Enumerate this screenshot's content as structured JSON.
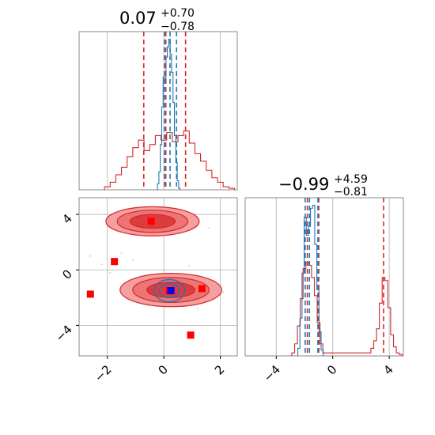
{
  "chart_data": {
    "type": "corner",
    "colors": {
      "blue": "#1f77b4",
      "red": "#d62728",
      "marker_red": "#ff0000",
      "marker_blue": "#0000ff",
      "grid": "#b0b0b0"
    },
    "panels": [
      {
        "id": "hist_x",
        "type": "line",
        "title": {
          "main": "0.07",
          "plus": "+0.70",
          "minus": "−0.78"
        },
        "xlim": [
          -3.0,
          2.6
        ],
        "x_gridlines": [
          -2,
          0,
          2
        ],
        "red_hist": {
          "x": [
            -2.0,
            -1.8,
            -1.6,
            -1.4,
            -1.2,
            -1.0,
            -0.8,
            -0.6,
            -0.4,
            -0.2,
            0.0,
            0.2,
            0.4,
            0.6,
            0.8,
            1.0,
            1.2,
            1.4,
            1.6,
            1.8,
            2.0,
            2.2,
            2.4
          ],
          "values": [
            0.02,
            0.05,
            0.1,
            0.15,
            0.22,
            0.28,
            0.33,
            0.26,
            0.3,
            0.36,
            0.33,
            0.38,
            0.32,
            0.36,
            0.39,
            0.31,
            0.24,
            0.19,
            0.13,
            0.08,
            0.05,
            0.02,
            0.01
          ]
        },
        "blue_hist": {
          "x": [
            -0.2,
            -0.15,
            -0.1,
            -0.05,
            0.0,
            0.05,
            0.1,
            0.15,
            0.2,
            0.25,
            0.3,
            0.35,
            0.4,
            0.45,
            0.5,
            0.55
          ],
          "values": [
            0.04,
            0.12,
            0.3,
            0.55,
            0.75,
            0.72,
            0.88,
            0.95,
            1.0,
            0.9,
            0.78,
            0.58,
            0.36,
            0.18,
            0.06,
            0.01
          ]
        },
        "red_quantiles": [
          -0.71,
          0.07,
          0.77
        ],
        "blue_quantiles": [
          0.02,
          0.22,
          0.45
        ]
      },
      {
        "id": "scatter_xy",
        "type": "scatter",
        "xlim": [
          -3.0,
          2.6
        ],
        "ylim": [
          -6.2,
          5.2
        ],
        "x_ticks": [
          "−2",
          "0",
          "2"
        ],
        "y_ticks": [
          "−4",
          "0",
          "4"
        ],
        "x_tick_values": [
          -2,
          0,
          2
        ],
        "y_tick_values": [
          -4,
          0,
          4
        ],
        "red_markers": [
          [
            -0.45,
            3.5
          ],
          [
            -1.75,
            0.6
          ],
          [
            -2.6,
            -1.75
          ],
          [
            1.35,
            -1.35
          ],
          [
            0.95,
            -4.7
          ],
          [
            0.2,
            -1.5
          ]
        ],
        "blue_markers": [
          [
            0.25,
            -1.5
          ]
        ],
        "red_contours": [
          {
            "cx": -0.4,
            "cy": 3.5,
            "rx": 1.65,
            "ry": 1.05
          },
          {
            "cx": -0.4,
            "cy": 3.5,
            "rx": 1.25,
            "ry": 0.8
          },
          {
            "cx": -0.4,
            "cy": 3.5,
            "rx": 0.8,
            "ry": 0.5
          },
          {
            "cx": 0.25,
            "cy": -1.45,
            "rx": 1.8,
            "ry": 1.2
          },
          {
            "cx": 0.25,
            "cy": -1.45,
            "rx": 1.35,
            "ry": 0.9
          },
          {
            "cx": 0.25,
            "cy": -1.45,
            "rx": 0.85,
            "ry": 0.55
          }
        ],
        "blue_contours": [
          {
            "cx": 0.2,
            "cy": -1.5,
            "rx": 0.55,
            "ry": 0.8
          },
          {
            "cx": 0.2,
            "cy": -1.5,
            "rx": 0.35,
            "ry": 0.5
          }
        ]
      },
      {
        "id": "hist_y",
        "type": "line",
        "title": {
          "main": "−0.99",
          "plus": "+4.59",
          "minus": "−0.81"
        },
        "xlim": [
          -6.2,
          5.0
        ],
        "x_ticks": [
          "−4",
          "0",
          "4"
        ],
        "x_tick_values": [
          -4,
          0,
          4
        ],
        "red_hist": {
          "x": [
            -2.8,
            -2.6,
            -2.4,
            -2.2,
            -2.0,
            -1.8,
            -1.6,
            -1.4,
            -1.2,
            -1.0,
            -0.8,
            -0.6,
            2.6,
            2.8,
            3.0,
            3.2,
            3.4,
            3.6,
            3.8,
            4.0,
            4.2,
            4.4,
            4.6,
            4.8
          ],
          "values": [
            0.02,
            0.08,
            0.2,
            0.38,
            0.58,
            0.62,
            0.6,
            0.52,
            0.4,
            0.22,
            0.08,
            0.02,
            0.02,
            0.05,
            0.1,
            0.18,
            0.35,
            0.52,
            0.5,
            0.32,
            0.14,
            0.06,
            0.02,
            0.01
          ]
        },
        "blue_hist": {
          "x": [
            -2.4,
            -2.25,
            -2.1,
            -1.95,
            -1.8,
            -1.65,
            -1.5,
            -1.35,
            -1.2,
            -1.05,
            -0.9,
            -0.75
          ],
          "values": [
            0.05,
            0.25,
            0.55,
            0.92,
            0.8,
            0.86,
            0.98,
            1.0,
            0.74,
            0.44,
            0.16,
            0.04
          ]
        },
        "red_quantiles": [
          -1.8,
          -0.99,
          3.6
        ],
        "blue_quantiles": [
          -1.95,
          -1.65,
          -1.05
        ]
      }
    ]
  }
}
